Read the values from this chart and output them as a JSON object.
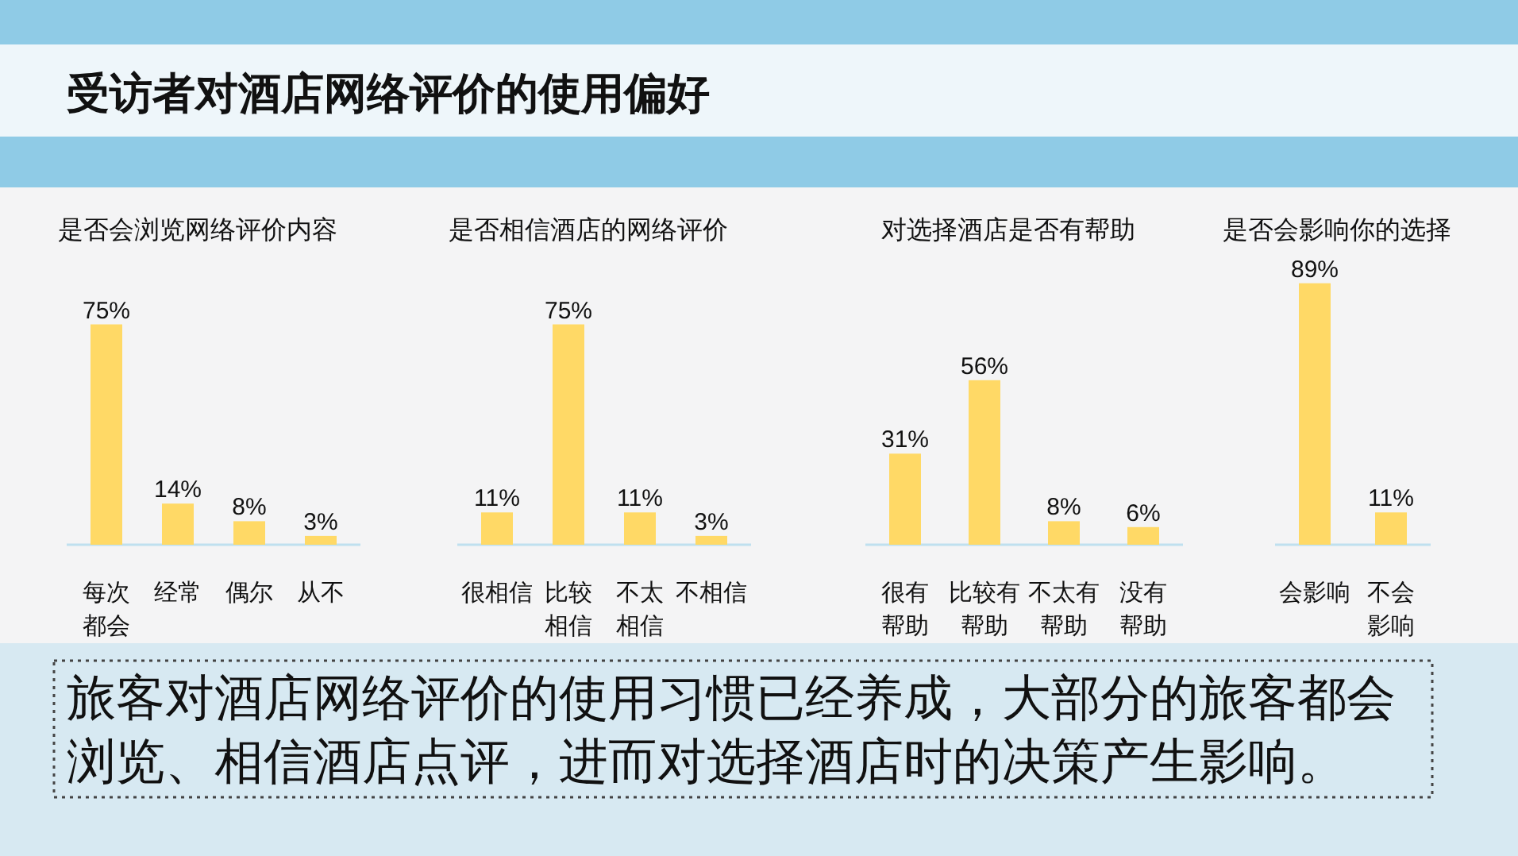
{
  "chart_data": [
    {
      "type": "other",
      "title": "受访者对酒店网络评价的使用偏好",
      "annotations": [
        "旅客对酒店网络评价的使用习惯已经养成，大部分的旅客都会浏览、相信酒店点评，进而对选择酒店时的决策产生影响。"
      ]
    },
    {
      "type": "bar",
      "title": "是否会浏览网络评价内容",
      "categories": [
        "每次都会",
        "经常",
        "偶尔",
        "从不"
      ],
      "values": [
        75,
        14,
        8,
        3
      ],
      "value_labels": [
        "75%",
        "14%",
        "8%",
        "3%"
      ],
      "color": "#ffd966"
    },
    {
      "type": "bar",
      "title": "是否相信酒店的网络评价",
      "categories": [
        "很相信",
        "比较相信",
        "不太相信",
        "不相信"
      ],
      "values": [
        11,
        75,
        11,
        3
      ],
      "value_labels": [
        "11%",
        "75%",
        "11%",
        "3%"
      ],
      "color": "#ffd966"
    },
    {
      "type": "bar",
      "title": "对选择酒店是否有帮助",
      "categories": [
        "很有帮助",
        "比较有帮助",
        "不太有帮助",
        "没有帮助"
      ],
      "values": [
        31,
        56,
        8,
        6
      ],
      "value_labels": [
        "31%",
        "56%",
        "8%",
        "6%"
      ],
      "color": "#ffd966"
    },
    {
      "type": "bar",
      "title": "是否会影响你的选择",
      "categories": [
        "会影响",
        "不会影响"
      ],
      "values": [
        89,
        11
      ],
      "value_labels": [
        "89%",
        "11%"
      ],
      "color": "#ffd966"
    }
  ]
}
